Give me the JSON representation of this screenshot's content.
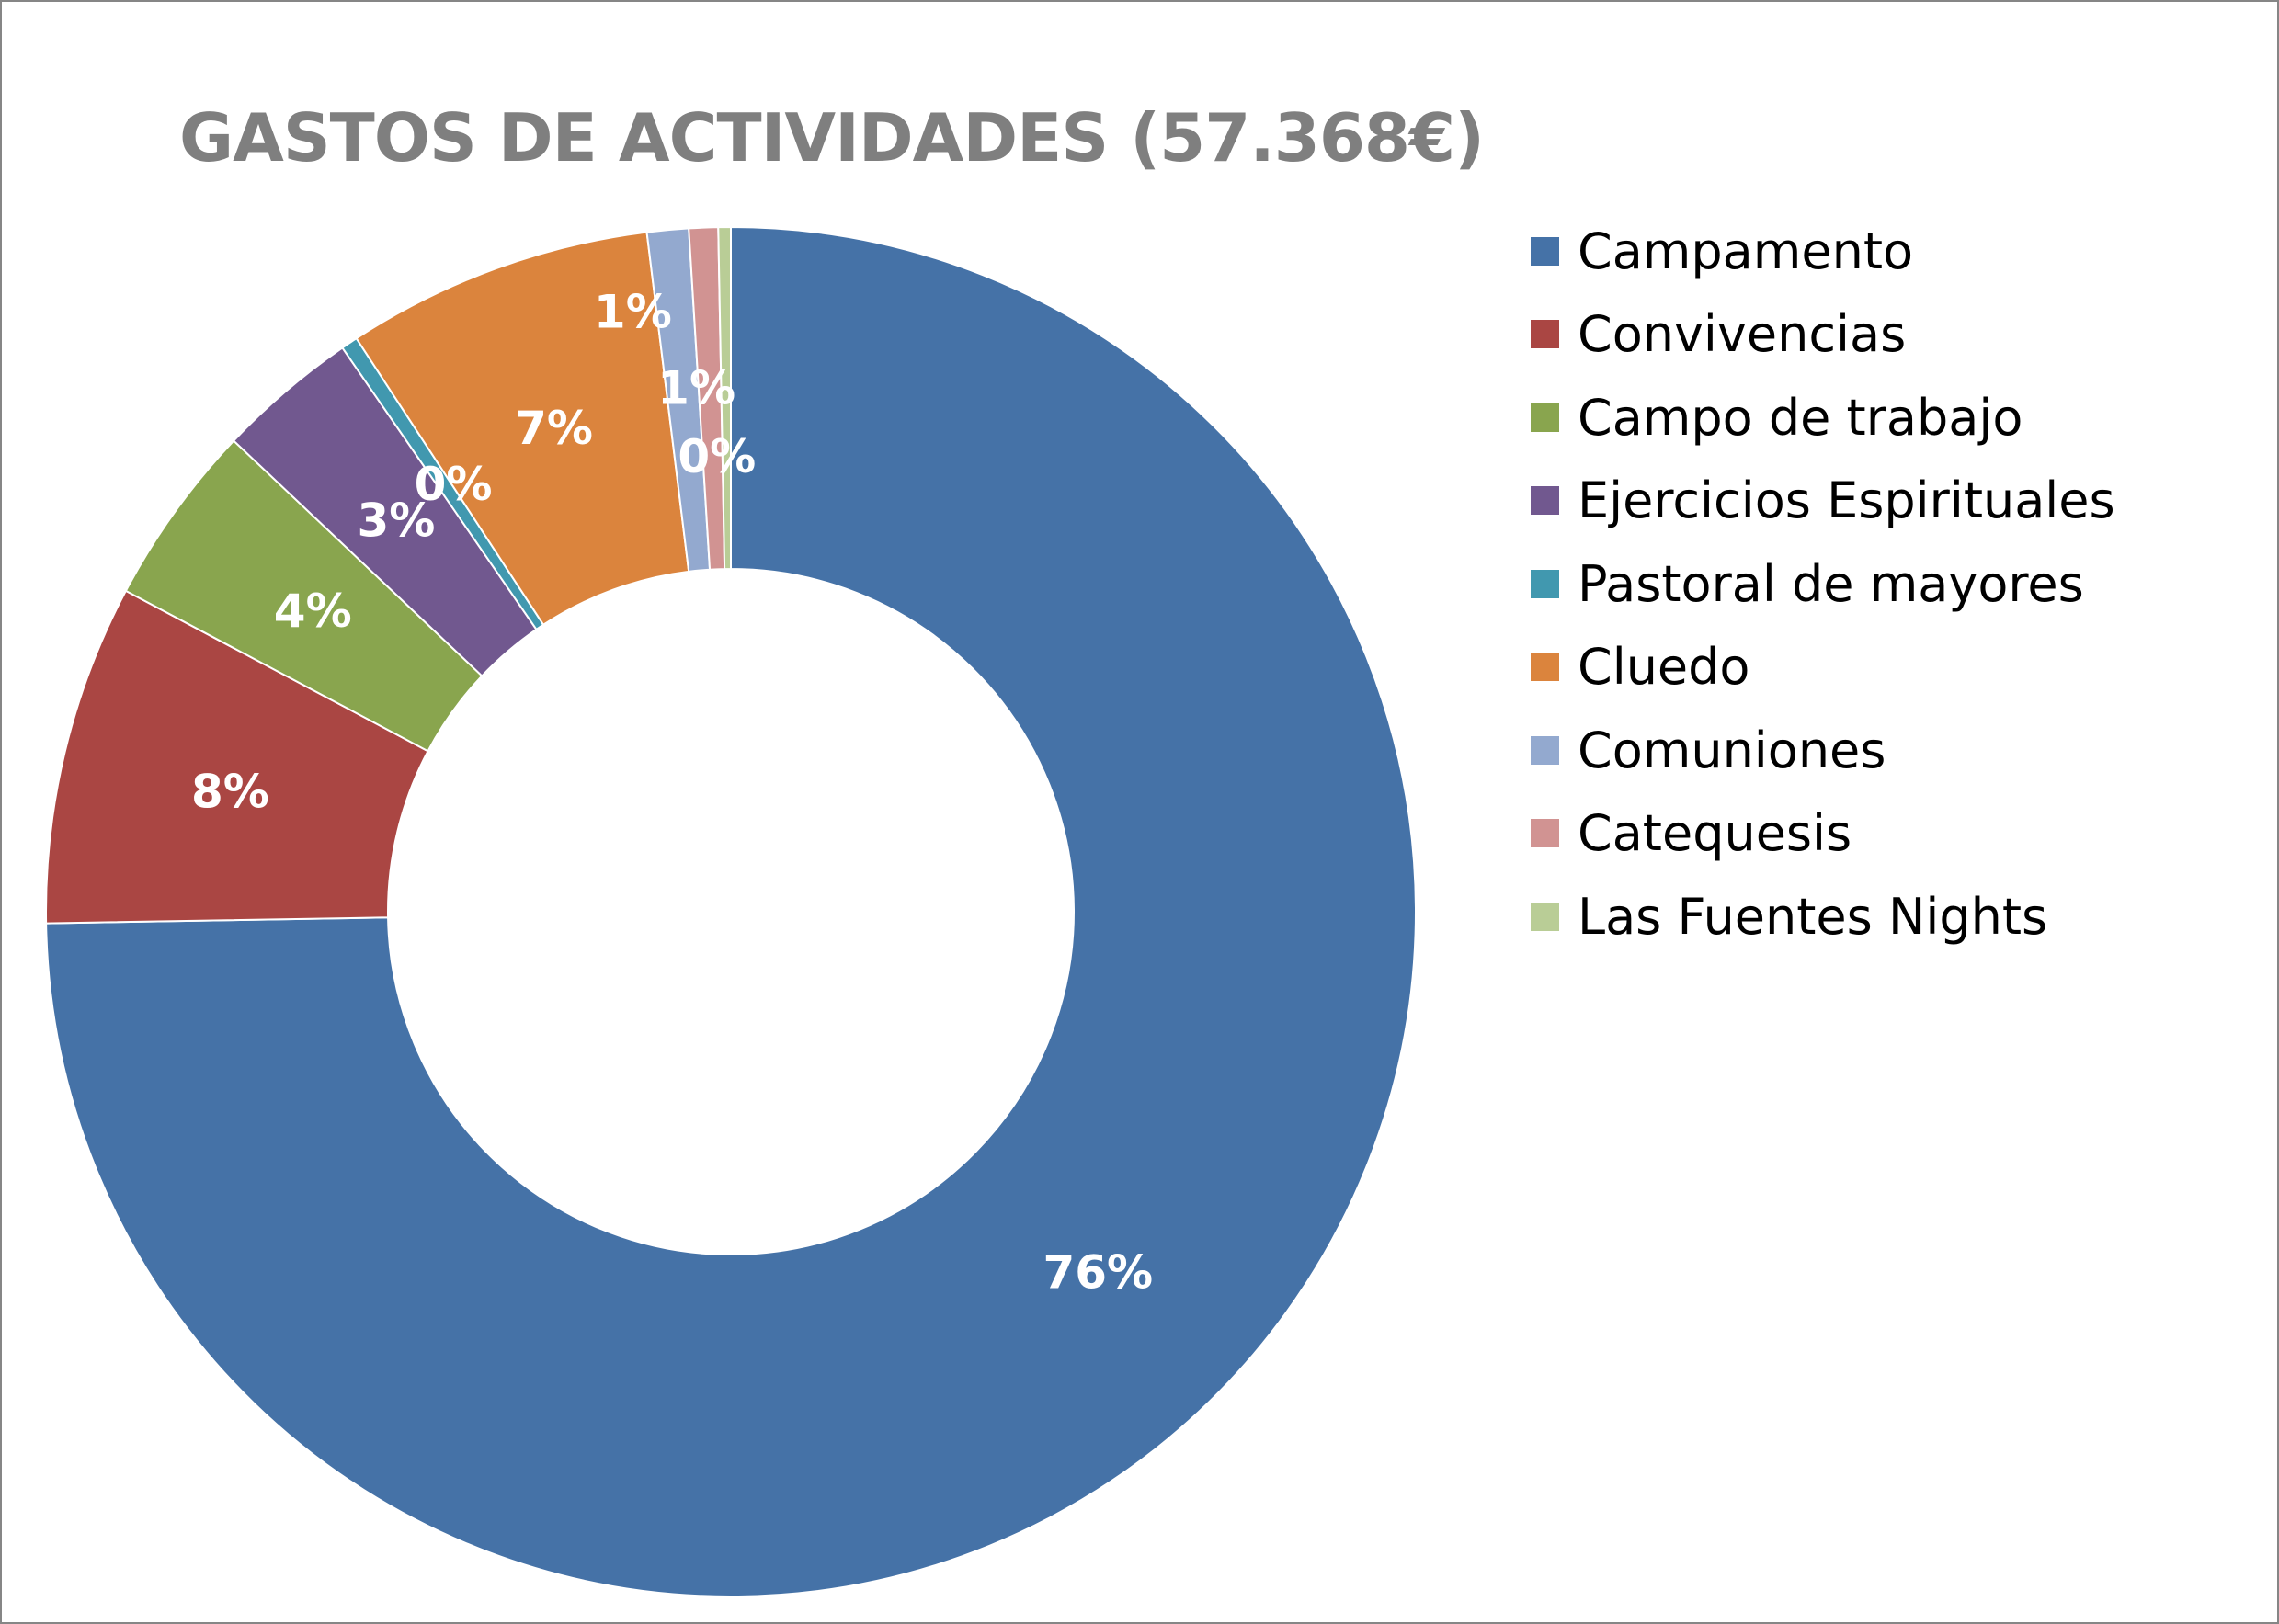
{
  "chart_data": {
    "type": "pie",
    "variant": "donut",
    "title": "GASTOS DE ACTIVIDADES (57.368€)",
    "legend_position": "right",
    "series": [
      {
        "labels": [
          "Campamento",
          "Convivencias",
          "Campo de trabajo",
          "Ejercicios Espirituales",
          "Pastoral de mayores",
          "Cluedo",
          "Comuniones",
          "Catequesis",
          "Las Fuentes Nights"
        ],
        "values": [
          76.3,
          8.2,
          4.4,
          3.4,
          0.4,
          7.4,
          1.0,
          0.7,
          0.3
        ],
        "data_labels": [
          "76%",
          "8%",
          "4%",
          "3%",
          "0%",
          "7%",
          "1%",
          "1%",
          "0%"
        ],
        "colors": [
          "#4572a7",
          "#aa4643",
          "#89a54e",
          "#71588f",
          "#4198af",
          "#db843d",
          "#93a9cf",
          "#d19392",
          "#b9cd96"
        ]
      }
    ]
  }
}
